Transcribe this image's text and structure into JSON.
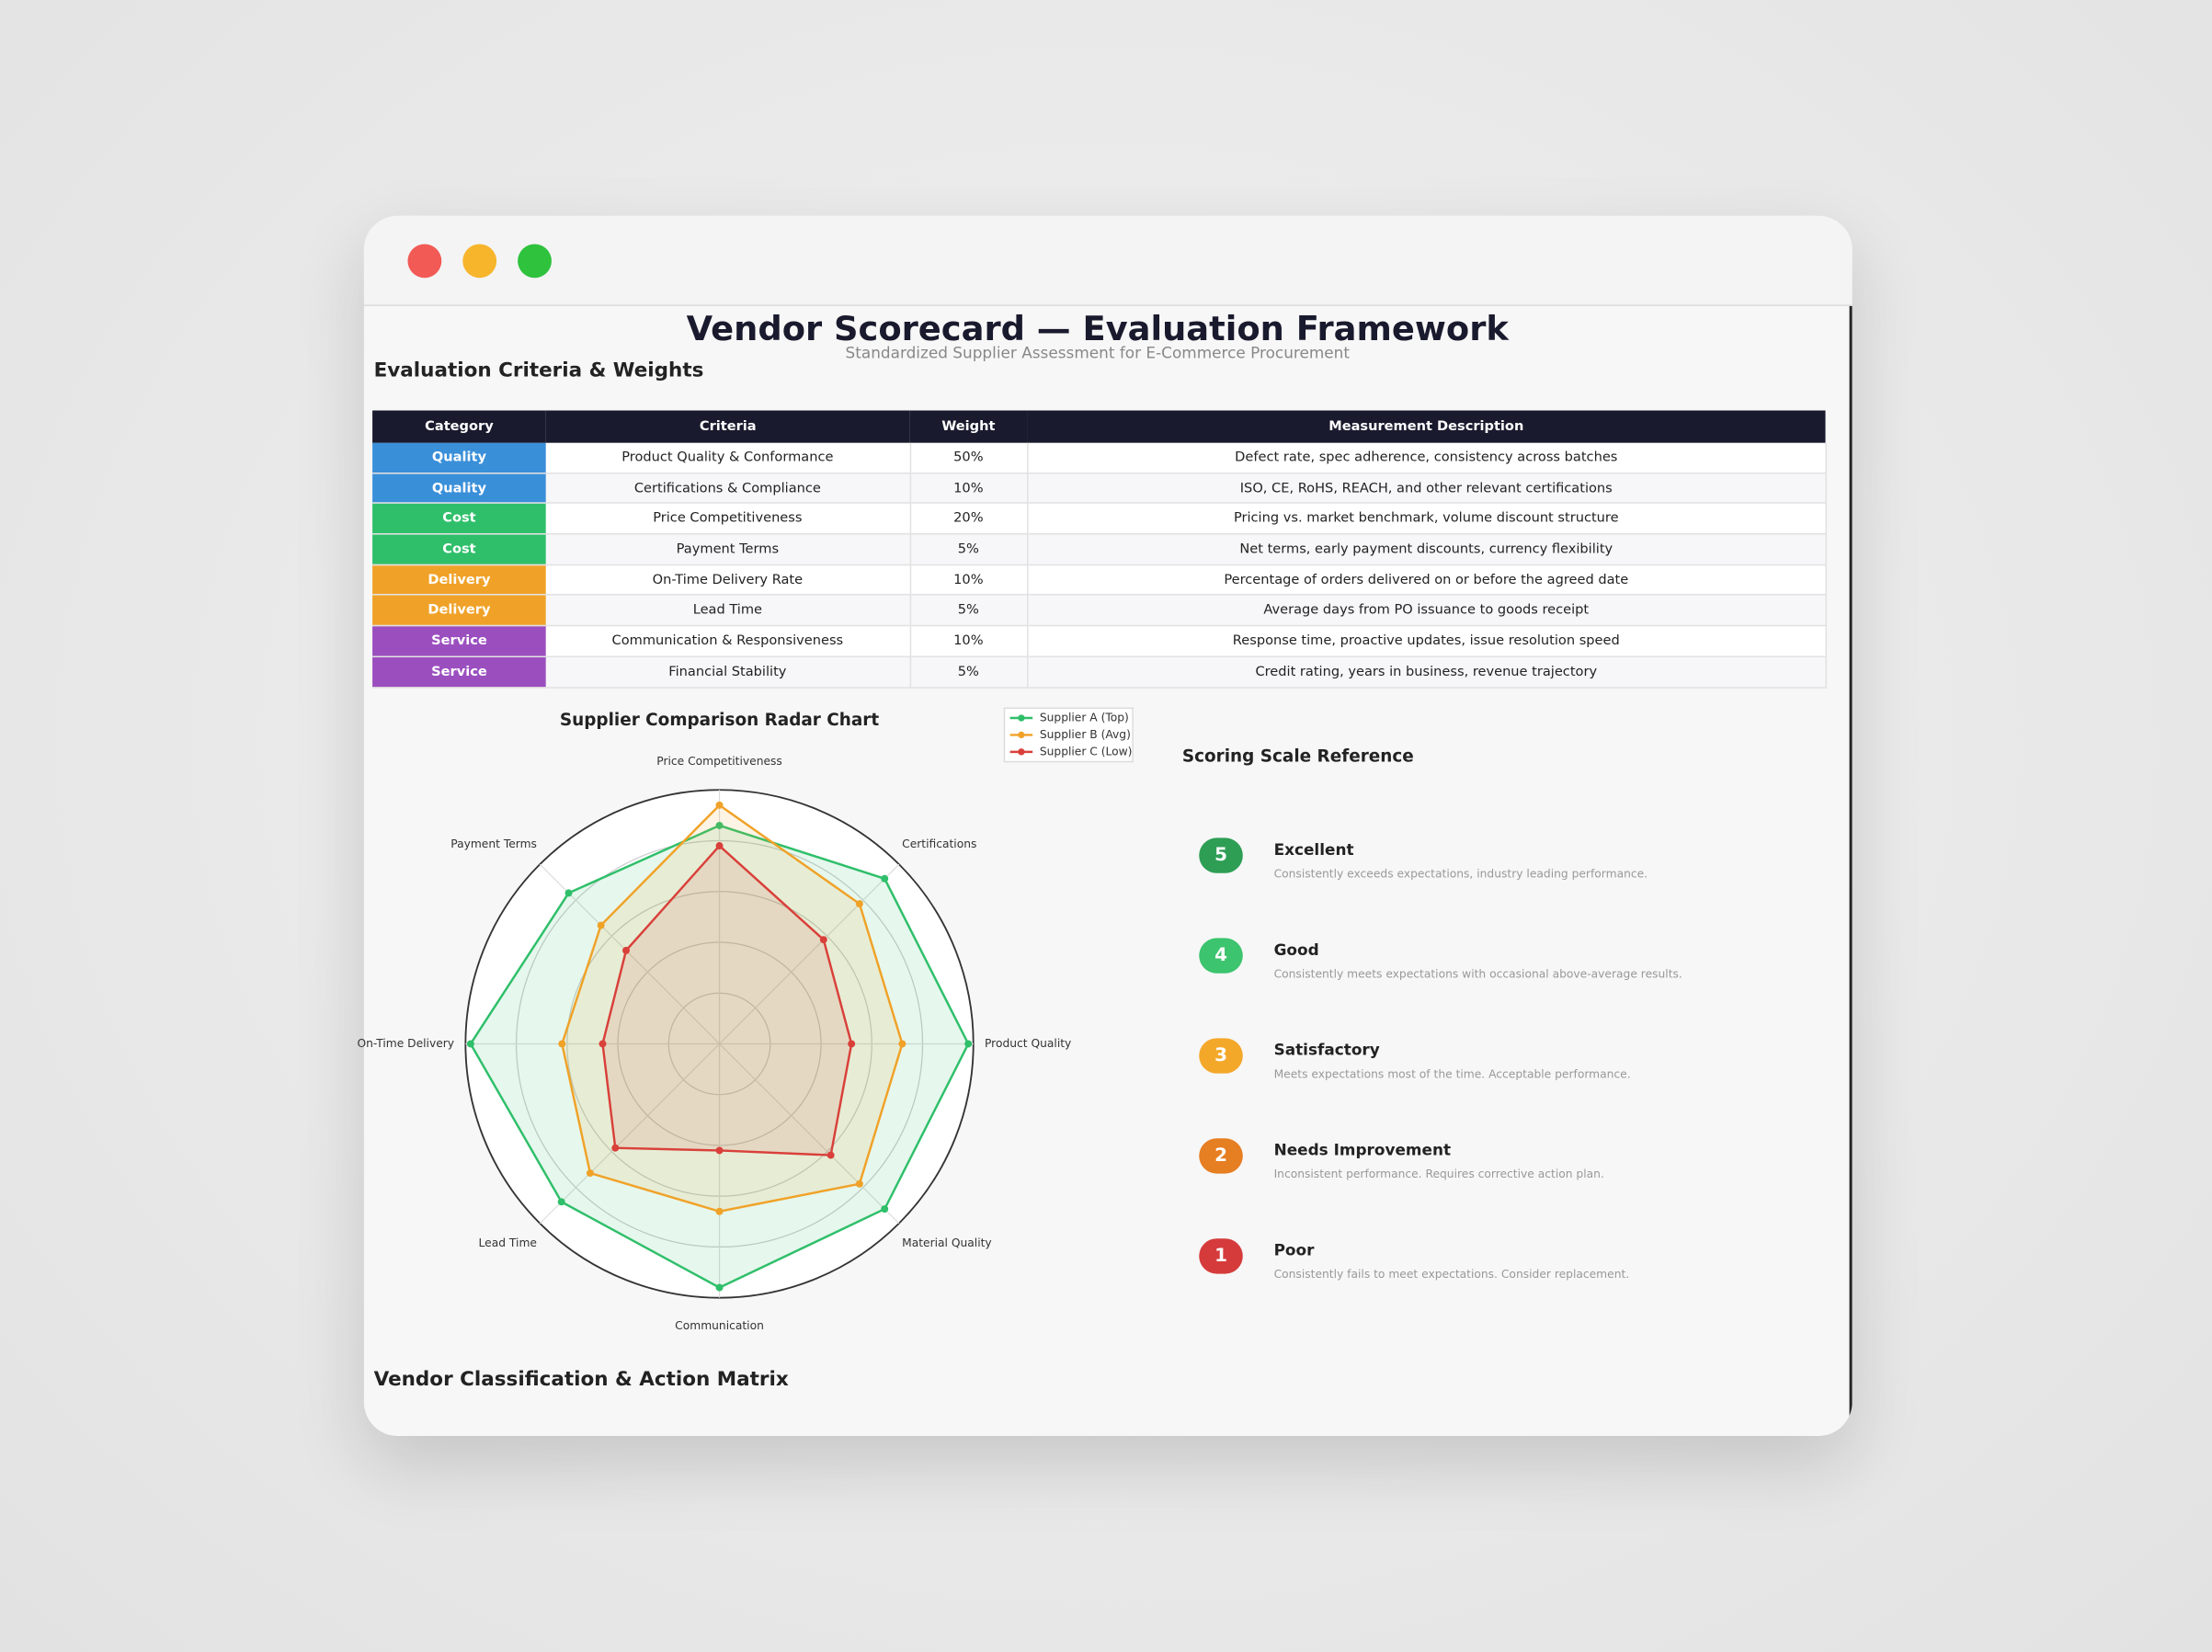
{
  "header": {
    "title": "Vendor Scorecard — Evaluation Framework",
    "subtitle": "Standardized Supplier Assessment for E-Commerce Procurement"
  },
  "table": {
    "title": "Evaluation Criteria & Weights",
    "columns": [
      "Category",
      "Criteria",
      "Weight",
      "Measurement Description"
    ],
    "category_colors": {
      "Quality": "#3a8fd9",
      "Cost": "#2fbf6a",
      "Delivery": "#f0a228",
      "Service": "#9b4fbf"
    },
    "rows": [
      [
        "Quality",
        "Product Quality & Conformance",
        "50%",
        "Defect rate, spec adherence, consistency across batches"
      ],
      [
        "Quality",
        "Certifications & Compliance",
        "10%",
        "ISO, CE, RoHS, REACH, and other relevant certifications"
      ],
      [
        "Cost",
        "Price Competitiveness",
        "20%",
        "Pricing vs. market benchmark, volume discount structure"
      ],
      [
        "Cost",
        "Payment Terms",
        "5%",
        "Net terms, early payment discounts, currency flexibility"
      ],
      [
        "Delivery",
        "On-Time Delivery Rate",
        "10%",
        "Percentage of orders delivered on or before the agreed date"
      ],
      [
        "Delivery",
        "Lead Time",
        "5%",
        "Average days from PO issuance to goods receipt"
      ],
      [
        "Service",
        "Communication & Responsiveness",
        "10%",
        "Response time, proactive updates, issue resolution speed"
      ],
      [
        "Service",
        "Financial Stability",
        "5%",
        "Credit rating, years in business, revenue trajectory"
      ]
    ]
  },
  "chart_data": {
    "type": "radar",
    "title": "Supplier Comparison Radar Chart",
    "categories": [
      "Price Competitiveness",
      "Certifications",
      "Product Quality",
      "Material Quality",
      "Communication",
      "Lead Time",
      "On-Time Delivery",
      "Payment Terms"
    ],
    "rlim": [
      0,
      5
    ],
    "rticks": [
      1,
      2,
      3,
      4,
      5
    ],
    "grid": true,
    "legend": "top-right",
    "series": [
      {
        "name": "Supplier A (Top)",
        "color": "#2fbf6a",
        "values": [
          4.3,
          4.6,
          4.9,
          4.6,
          4.8,
          4.4,
          4.9,
          4.2
        ]
      },
      {
        "name": "Supplier B (Avg)",
        "color": "#f0a228",
        "values": [
          4.7,
          3.9,
          3.6,
          3.9,
          3.3,
          3.6,
          3.1,
          3.3
        ]
      },
      {
        "name": "Supplier C (Low)",
        "color": "#d9403a",
        "values": [
          3.9,
          2.9,
          2.6,
          3.1,
          2.1,
          2.9,
          2.3,
          2.6
        ]
      }
    ]
  },
  "scale": {
    "title": "Scoring Scale Reference",
    "items": [
      {
        "score": "5",
        "label": "Excellent",
        "description": "Consistently exceeds expectations, industry leading performance.",
        "color": "#2e9e55"
      },
      {
        "score": "4",
        "label": "Good",
        "description": "Consistently meets expectations with occasional above-average results.",
        "color": "#3cc46e"
      },
      {
        "score": "3",
        "label": "Satisfactory",
        "description": "Meets expectations most of the time. Acceptable performance.",
        "color": "#f4a82a"
      },
      {
        "score": "2",
        "label": "Needs Improvement",
        "description": "Inconsistent performance. Requires corrective action plan.",
        "color": "#e67e22"
      },
      {
        "score": "1",
        "label": "Poor",
        "description": "Consistently fails to meet expectations. Consider replacement.",
        "color": "#d63b3b"
      }
    ]
  },
  "matrix": {
    "title": "Vendor Classification & Action Matrix"
  }
}
